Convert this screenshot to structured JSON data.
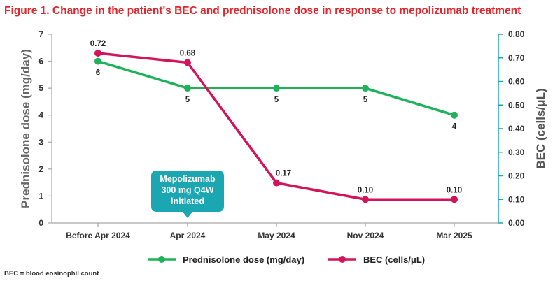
{
  "title": "Figure 1. Change in the patient's BEC and prednisolone dose in response to mepolizumab treatment",
  "footnote": "BEC = blood eosinophil count",
  "colors": {
    "title": "#e3262b",
    "prednisolone": "#1fb25a",
    "bec": "#d4145a",
    "right_axis": "#1aa7b2",
    "left_axis": "#a8a8a8",
    "callout": "#1aa7b2"
  },
  "chart_data": {
    "type": "line",
    "categories": [
      "Before Apr 2024",
      "Apr 2024",
      "May 2024",
      "Nov 2024",
      "Mar 2025"
    ],
    "y_left": {
      "label": "Prednisolone dose (mg/day)",
      "range": [
        0,
        7
      ],
      "ticks": [
        "0",
        "1",
        "2",
        "3",
        "4",
        "5",
        "6",
        "7"
      ]
    },
    "y_right": {
      "label": "BEC (cells/μL)",
      "range": [
        0,
        0.8
      ],
      "ticks": [
        "0.00",
        "0.10",
        "0.20",
        "0.30",
        "0.40",
        "0.50",
        "0.60",
        "0.70",
        "0.80"
      ]
    },
    "series": [
      {
        "name": "Prednisolone dose (mg/day)",
        "axis": "left",
        "values": [
          6,
          5,
          5,
          5,
          4
        ],
        "x_index": [
          0,
          1,
          2,
          3,
          4
        ],
        "labels": [
          "6",
          "5",
          "5",
          "5",
          "4"
        ]
      },
      {
        "name": "BEC (cells/μL)",
        "axis": "right",
        "values": [
          0.72,
          0.68,
          0.17,
          0.1,
          0.1
        ],
        "x_index": [
          0,
          1,
          2,
          3,
          4
        ],
        "labels": [
          "0.72",
          "0.68",
          "0.17",
          "0.10",
          "0.10"
        ]
      }
    ],
    "annotation": {
      "lines": [
        "Mepolizumab",
        "300 mg Q4W",
        "initiated"
      ],
      "category": "Apr 2024"
    },
    "legend_position": "bottom",
    "grid": false
  }
}
